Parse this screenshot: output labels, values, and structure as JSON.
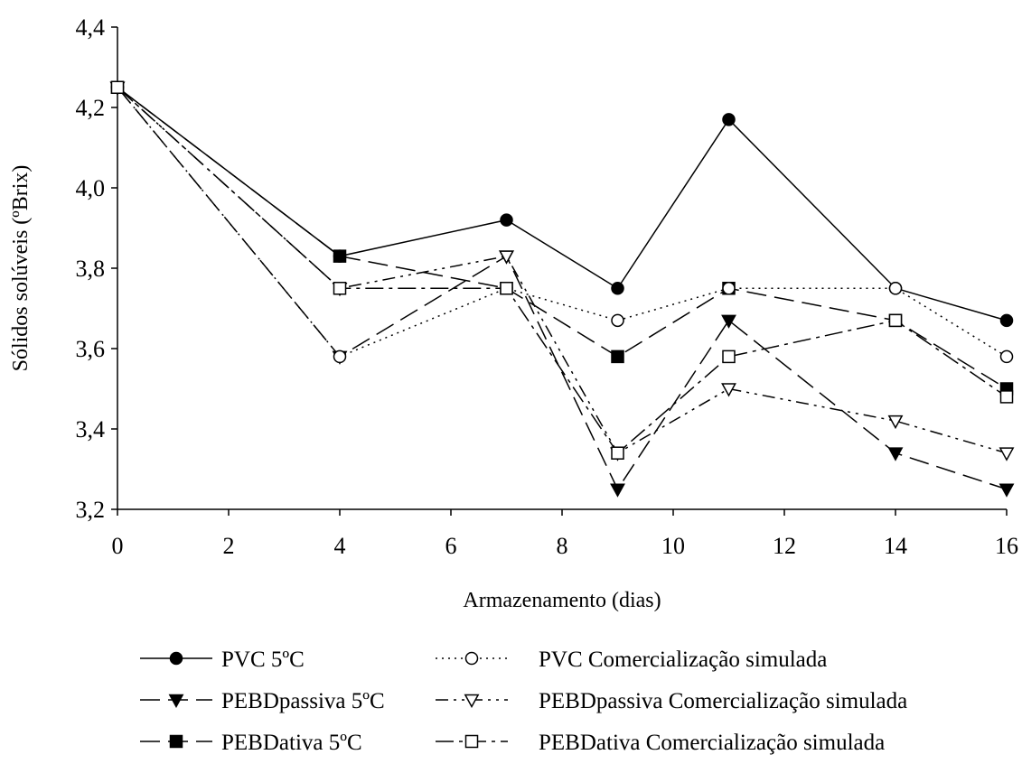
{
  "chart_data": {
    "type": "line",
    "title": "",
    "xlabel": "Armazenamento (dias)",
    "ylabel": "Sólidos solúveis (ºBrix)",
    "xlim": [
      0,
      16
    ],
    "ylim": [
      3.2,
      4.4
    ],
    "x_ticks": [
      0,
      2,
      4,
      6,
      8,
      10,
      12,
      14,
      16
    ],
    "y_ticks": [
      3.2,
      3.4,
      3.6,
      3.8,
      4.0,
      4.2,
      4.4
    ],
    "x_tick_labels": [
      "0",
      "2",
      "4",
      "6",
      "8",
      "10",
      "12",
      "14",
      "16"
    ],
    "y_tick_labels": [
      "3,2",
      "3,4",
      "3,6",
      "3,8",
      "4,0",
      "4,2",
      "4,4"
    ],
    "x": [
      0,
      4,
      7,
      9,
      11,
      14,
      16
    ],
    "grid": false,
    "legend_position": "bottom",
    "series": [
      {
        "name": "PVC 5ºC",
        "values": [
          4.25,
          3.83,
          3.92,
          3.75,
          4.17,
          3.75,
          3.67
        ],
        "marker": "circle-filled",
        "dash": "solid"
      },
      {
        "name": "PVC Comercialização simulada",
        "values": [
          4.25,
          3.58,
          3.75,
          3.67,
          3.75,
          3.75,
          3.58
        ],
        "marker": "circle-open",
        "dash": "dotted"
      },
      {
        "name": "PEBDpassiva 5ºC",
        "values": [
          4.25,
          3.58,
          3.83,
          3.25,
          3.67,
          3.34,
          3.25
        ],
        "marker": "triangle-filled",
        "dash": "long-dash"
      },
      {
        "name": "PEBDpassiva Comercialização simulada",
        "values": [
          4.25,
          3.75,
          3.83,
          3.34,
          3.5,
          3.42,
          3.34
        ],
        "marker": "triangle-open",
        "dash": "dash-dot-dot"
      },
      {
        "name": "PEBDativa 5ºC",
        "values": [
          4.25,
          3.83,
          3.75,
          3.58,
          3.75,
          3.67,
          3.5
        ],
        "marker": "square-filled",
        "dash": "long-dash"
      },
      {
        "name": "PEBDativa Comercialização simulada",
        "values": [
          4.25,
          3.75,
          3.75,
          3.34,
          3.58,
          3.67,
          3.48
        ],
        "marker": "square-open",
        "dash": "dash-dot"
      }
    ]
  }
}
